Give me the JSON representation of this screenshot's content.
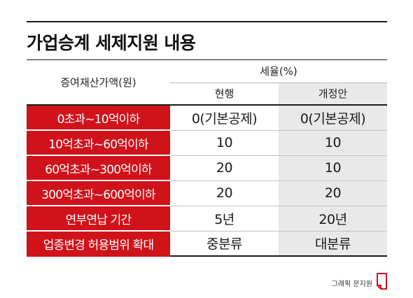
{
  "title": "가업승계 세제지원 내용",
  "header": {
    "row_label": "증여재산가액(원)",
    "group_label": "세율(%)",
    "col_current": "현행",
    "col_proposed": "개정안"
  },
  "rows": [
    {
      "label": "0초과~10억이하",
      "current": "0(기본공제)",
      "proposed": "0(기본공제)"
    },
    {
      "label": "10억초과~60억이하",
      "current": "10",
      "proposed": "10"
    },
    {
      "label": "60억초과~300억이하",
      "current": "20",
      "proposed": "10"
    },
    {
      "label": "300억초과~600억이하",
      "current": "20",
      "proposed": "20"
    },
    {
      "label": "연부연납 기간",
      "current": "5년",
      "proposed": "20년"
    },
    {
      "label": "업종변경 허용범위 확대",
      "current": "중분류",
      "proposed": "대분류"
    }
  ],
  "credit": "그래픽 문지원",
  "colors": {
    "accent": "#d0121b",
    "alt_column": "#e9e9e9",
    "text": "#1a1a1a"
  },
  "icons": {
    "logo": "red-page-logo-icon"
  }
}
